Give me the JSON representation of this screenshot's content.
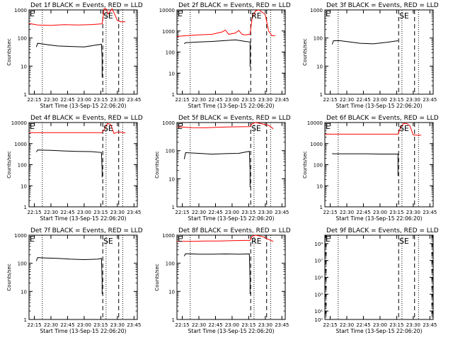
{
  "chart_data": [
    {
      "type": "line",
      "title": "Det 1f BLACK = Events, RED = LLD",
      "ylabel": "Counts/sec",
      "xlabel": "Start Time (13-Sep-15 22:06:20)",
      "ylog": true,
      "ylim": [
        1,
        1000
      ],
      "yticks": [
        1,
        10,
        100,
        1000
      ],
      "ytick_labels": [
        "1",
        "10",
        "100",
        "1000"
      ],
      "xlim": [
        22.17,
        23.8
      ],
      "xticks": [
        22.25,
        22.5,
        22.75,
        23.0,
        23.25,
        23.5,
        23.75
      ],
      "xtick_labels": [
        "22:15",
        "22:30",
        "22:45",
        "23:00",
        "23:15",
        "23:30",
        "23:45"
      ],
      "annotations": [
        {
          "text": "E",
          "x": 22.18
        },
        {
          "text": "SE",
          "x": 23.32
        }
      ],
      "vlines_dotted": [
        22.37,
        23.33,
        23.58
      ],
      "vlines_dashed": [
        23.28,
        23.52
      ],
      "series": [
        {
          "color": "#ff0000",
          "x": [
            22.17,
            22.3,
            22.5,
            22.7,
            22.9,
            23.1,
            23.27,
            23.3,
            23.33,
            23.36,
            23.42,
            23.46,
            23.5,
            23.55,
            23.62
          ],
          "y": [
            330,
            290,
            280,
            300,
            290,
            300,
            320,
            1100,
            1100,
            700,
            1100,
            700,
            420,
            380,
            380
          ]
        },
        {
          "color": "#000000",
          "x": [
            22.28,
            22.3,
            22.45,
            22.6,
            22.8,
            23.0,
            23.15,
            23.26,
            23.27,
            23.27
          ],
          "y": [
            48,
            65,
            58,
            52,
            50,
            48,
            55,
            60,
            20,
            4
          ]
        }
      ]
    },
    {
      "type": "line",
      "title": "Det 2f BLACK = Events, RED = LLD",
      "ylabel": "",
      "xlabel": "Start Time (13-Sep-15 22:06:20)",
      "ylog": true,
      "ylim": [
        1,
        10000
      ],
      "yticks": [
        1,
        10,
        100,
        1000,
        10000
      ],
      "ytick_labels": [
        "1",
        "10",
        "100",
        "1000",
        "10000"
      ],
      "xlim": [
        22.17,
        23.8
      ],
      "xticks": [
        22.25,
        22.5,
        22.75,
        23.0,
        23.25,
        23.5,
        23.75
      ],
      "xtick_labels": [
        "22:15",
        "22:30",
        "22:45",
        "23:00",
        "23:15",
        "23:30",
        "23:45"
      ],
      "annotations": [
        {
          "text": "E",
          "x": 22.18
        },
        {
          "text": "RE",
          "x": 23.32
        }
      ],
      "vlines_dotted": [
        22.37,
        23.58
      ],
      "vlines_dashed": [
        23.28,
        23.52
      ],
      "series": [
        {
          "color": "#ff0000",
          "x": [
            22.17,
            22.3,
            22.5,
            22.7,
            22.85,
            22.9,
            22.95,
            23.05,
            23.1,
            23.15,
            23.2,
            23.27,
            23.3,
            23.35,
            23.4,
            23.45,
            23.5,
            23.55,
            23.6,
            23.65
          ],
          "y": [
            550,
            600,
            650,
            700,
            900,
            1100,
            700,
            800,
            1050,
            700,
            650,
            700,
            4000,
            9000,
            10000,
            8000,
            6000,
            1000,
            600,
            600
          ]
        },
        {
          "color": "#000000",
          "x": [
            22.28,
            22.3,
            22.5,
            22.7,
            22.9,
            23.05,
            23.2,
            23.27,
            23.27,
            23.27
          ],
          "y": [
            250,
            280,
            300,
            320,
            350,
            380,
            320,
            300,
            40,
            20
          ]
        }
      ]
    },
    {
      "type": "line",
      "title": "Det 3f BLACK = Events, RED = LLD",
      "ylabel": "Counts/sec",
      "xlabel": "Start Time (13-Sep-15 22:06:20)",
      "ylog": true,
      "ylim": [
        1,
        1000
      ],
      "yticks": [
        1,
        10,
        100,
        1000
      ],
      "ytick_labels": [
        "1",
        "10",
        "100",
        "1000"
      ],
      "xlim": [
        22.17,
        23.8
      ],
      "xticks": [
        22.25,
        22.5,
        22.75,
        23.0,
        23.25,
        23.5,
        23.75
      ],
      "xtick_labels": [
        "22:15",
        "22:30",
        "22:45",
        "23:00",
        "23:15",
        "23:30",
        "23:45"
      ],
      "annotations": [
        {
          "text": "E",
          "x": 22.18
        },
        {
          "text": "SE",
          "x": 23.32
        }
      ],
      "vlines_dotted": [
        22.37,
        23.33,
        23.58
      ],
      "vlines_dashed": [
        23.28,
        23.52
      ],
      "series": [
        {
          "color": "#000000",
          "x": [
            22.28,
            22.3,
            22.4,
            22.55,
            22.7,
            22.9,
            23.1,
            23.27
          ],
          "y": [
            60,
            80,
            80,
            72,
            65,
            62,
            70,
            80
          ]
        }
      ]
    },
    {
      "type": "line",
      "title": "Det 4f BLACK = Events, RED = LLD",
      "ylabel": "Counts/sec",
      "xlabel": "Start Time (13-Sep-15 22:06:20)",
      "ylog": true,
      "ylim": [
        1,
        10000
      ],
      "yticks": [
        1,
        10,
        100,
        1000,
        10000
      ],
      "ytick_labels": [
        "1",
        "10",
        "100",
        "1000",
        "10000"
      ],
      "xlim": [
        22.17,
        23.8
      ],
      "xticks": [
        22.25,
        22.5,
        22.75,
        23.0,
        23.25,
        23.5,
        23.75
      ],
      "xtick_labels": [
        "22:15",
        "22:30",
        "22:45",
        "23:00",
        "23:15",
        "23:30",
        "23:45"
      ],
      "annotations": [
        {
          "text": "E",
          "x": 22.18
        },
        {
          "text": "SE",
          "x": 23.32
        }
      ],
      "vlines_dotted": [
        22.37,
        23.33,
        23.58
      ],
      "vlines_dashed": [
        23.28,
        23.52
      ],
      "series": [
        {
          "color": "#ff0000",
          "x": [
            22.17,
            22.5,
            22.8,
            23.1,
            23.27,
            23.3,
            23.35,
            23.4,
            23.45,
            23.5,
            23.55,
            23.62
          ],
          "y": [
            3300,
            3300,
            3300,
            3300,
            3300,
            4500,
            9000,
            8000,
            3000,
            3500,
            3500,
            3200
          ]
        },
        {
          "color": "#000000",
          "x": [
            22.28,
            22.3,
            22.5,
            22.7,
            22.9,
            23.1,
            23.26,
            23.27,
            23.27
          ],
          "y": [
            400,
            500,
            480,
            450,
            430,
            420,
            380,
            60,
            25
          ]
        }
      ]
    },
    {
      "type": "line",
      "title": "Det 5f BLACK = Events, RED = LLD",
      "ylabel": "Counts/sec",
      "xlabel": "Start Time (13-Sep-15 22:06:20)",
      "ylog": true,
      "ylim": [
        1,
        1000
      ],
      "yticks": [
        1,
        10,
        100,
        1000
      ],
      "ytick_labels": [
        "1",
        "10",
        "100",
        "1000"
      ],
      "xlim": [
        22.17,
        23.8
      ],
      "xticks": [
        22.25,
        22.5,
        22.75,
        23.0,
        23.25,
        23.5,
        23.75
      ],
      "xtick_labels": [
        "22:15",
        "22:30",
        "22:45",
        "23:00",
        "23:15",
        "23:30",
        "23:45"
      ],
      "annotations": [
        {
          "text": "E",
          "x": 22.18
        },
        {
          "text": "SE",
          "x": 23.32
        }
      ],
      "vlines_dotted": [
        22.37,
        23.33,
        23.58
      ],
      "vlines_dashed": [
        23.28,
        23.52
      ],
      "series": [
        {
          "color": "#ff0000",
          "x": [
            22.17,
            22.4,
            22.6,
            22.8,
            23.0,
            23.27,
            23.3,
            23.35,
            23.45,
            23.55,
            23.62
          ],
          "y": [
            700,
            660,
            650,
            680,
            700,
            720,
            900,
            1000,
            900,
            800,
            600
          ]
        },
        {
          "color": "#000000",
          "x": [
            22.28,
            22.3,
            22.5,
            22.7,
            22.9,
            23.1,
            23.26,
            23.27,
            23.27
          ],
          "y": [
            50,
            85,
            80,
            75,
            78,
            80,
            95,
            20,
            5
          ]
        }
      ]
    },
    {
      "type": "line",
      "title": "Det 6f BLACK = Events, RED = LLD",
      "ylabel": "Counts/sec",
      "xlabel": "Start Time (13-Sep-15 22:06:20)",
      "ylog": true,
      "ylim": [
        1,
        10000
      ],
      "yticks": [
        1,
        10,
        100,
        1000,
        10000
      ],
      "ytick_labels": [
        "1",
        "10",
        "100",
        "1000",
        "10000"
      ],
      "xlim": [
        22.17,
        23.8
      ],
      "xticks": [
        22.25,
        22.5,
        22.75,
        23.0,
        23.25,
        23.5,
        23.75
      ],
      "xtick_labels": [
        "22:15",
        "22:30",
        "22:45",
        "23:00",
        "23:15",
        "23:30",
        "23:45"
      ],
      "annotations": [
        {
          "text": "E",
          "x": 22.18
        },
        {
          "text": "SE",
          "x": 23.32
        }
      ],
      "vlines_dotted": [
        22.37,
        23.33,
        23.58
      ],
      "vlines_dashed": [
        23.28,
        23.52
      ],
      "series": [
        {
          "color": "#ff0000",
          "x": [
            22.17,
            22.5,
            22.8,
            23.1,
            23.27,
            23.3,
            23.35,
            23.4,
            23.45,
            23.5,
            23.55,
            23.62
          ],
          "y": [
            2800,
            2800,
            2800,
            2800,
            2800,
            5000,
            9000,
            9000,
            7000,
            2600,
            2500,
            2500
          ]
        },
        {
          "color": "#000000",
          "x": [
            22.28,
            22.3,
            22.5,
            22.8,
            23.0,
            23.1,
            23.2,
            23.27,
            23.27,
            23.27
          ],
          "y": [
            340,
            330,
            330,
            330,
            320,
            320,
            320,
            320,
            80,
            30
          ]
        }
      ]
    },
    {
      "type": "line",
      "title": "Det 7f BLACK = Events, RED = LLD",
      "ylabel": "Counts/sec",
      "xlabel": "Start Time (13-Sep-15 22:06:20)",
      "ylog": true,
      "ylim": [
        1,
        1000
      ],
      "yticks": [
        1,
        10,
        100,
        1000
      ],
      "ytick_labels": [
        "1",
        "10",
        "100",
        "1000"
      ],
      "xlim": [
        22.17,
        23.8
      ],
      "xticks": [
        22.25,
        22.5,
        22.75,
        23.0,
        23.25,
        23.5,
        23.75
      ],
      "xtick_labels": [
        "22:15",
        "22:30",
        "22:45",
        "23:00",
        "23:15",
        "23:30",
        "23:45"
      ],
      "annotations": [
        {
          "text": "E",
          "x": 22.18
        },
        {
          "text": "SE",
          "x": 23.32
        }
      ],
      "vlines_dotted": [
        22.37,
        23.33,
        23.58
      ],
      "vlines_dashed": [
        23.28,
        23.52
      ],
      "series": [
        {
          "color": "#000000",
          "x": [
            22.28,
            22.3,
            22.4,
            22.6,
            22.8,
            23.0,
            23.2,
            23.26,
            23.27,
            23.27
          ],
          "y": [
            120,
            160,
            155,
            150,
            140,
            135,
            140,
            150,
            25,
            8
          ]
        }
      ]
    },
    {
      "type": "line",
      "title": "Det 8f BLACK = Events, RED = LLD",
      "ylabel": "Counts/sec",
      "xlabel": "Start Time (13-Sep-15 22:06:20)",
      "ylog": true,
      "ylim": [
        1,
        1000
      ],
      "yticks": [
        1,
        10,
        100,
        1000
      ],
      "ytick_labels": [
        "1",
        "10",
        "100",
        "1000"
      ],
      "xlim": [
        22.17,
        23.8
      ],
      "xticks": [
        22.25,
        22.5,
        22.75,
        23.0,
        23.25,
        23.5,
        23.75
      ],
      "xtick_labels": [
        "22:15",
        "22:30",
        "22:45",
        "23:00",
        "23:15",
        "23:30",
        "23:45"
      ],
      "annotations": [
        {
          "text": "E",
          "x": 22.18
        },
        {
          "text": "RE",
          "x": 23.32
        }
      ],
      "vlines_dotted": [
        22.37,
        23.33,
        23.58
      ],
      "vlines_dashed": [
        23.28,
        23.52
      ],
      "series": [
        {
          "color": "#ff0000",
          "x": [
            22.17,
            22.4,
            22.6,
            22.8,
            23.0,
            23.2,
            23.27,
            23.3,
            23.35,
            23.45,
            23.55,
            23.62
          ],
          "y": [
            600,
            600,
            620,
            620,
            640,
            650,
            650,
            900,
            1000,
            900,
            700,
            600
          ]
        },
        {
          "color": "#000000",
          "x": [
            22.28,
            22.3,
            22.5,
            22.7,
            22.9,
            23.1,
            23.26,
            23.27,
            23.27
          ],
          "y": [
            180,
            220,
            210,
            210,
            215,
            210,
            215,
            25,
            8
          ]
        }
      ]
    },
    {
      "type": "line",
      "title": "Det 9f BLACK = Events, RED = LLD",
      "ylabel": "",
      "xlabel": "Start Time (13-Sep-15 22:06:20)",
      "ylog": true,
      "ylim": [
        1,
        10000000000
      ],
      "yticks": [
        1,
        10,
        1000,
        100000,
        10000000,
        1000000000
      ],
      "ytick_labels": [
        "10⁰",
        "10¹",
        "10³",
        "10⁵",
        "10⁷",
        "10⁹"
      ],
      "xlim": [
        22.17,
        23.8
      ],
      "xticks": [
        22.25,
        22.5,
        22.75,
        23.0,
        23.25,
        23.5,
        23.75
      ],
      "xtick_labels": [
        "22:15",
        "22:30",
        "22:45",
        "23:00",
        "23:15",
        "23:30",
        "23:45"
      ],
      "annotations": [
        {
          "text": "E",
          "x": 22.18
        },
        {
          "text": "SE",
          "x": 23.32
        }
      ],
      "vlines_dotted": [
        22.37,
        23.33,
        23.58
      ],
      "vlines_dashed": [
        23.28,
        23.52
      ],
      "series": []
    }
  ]
}
